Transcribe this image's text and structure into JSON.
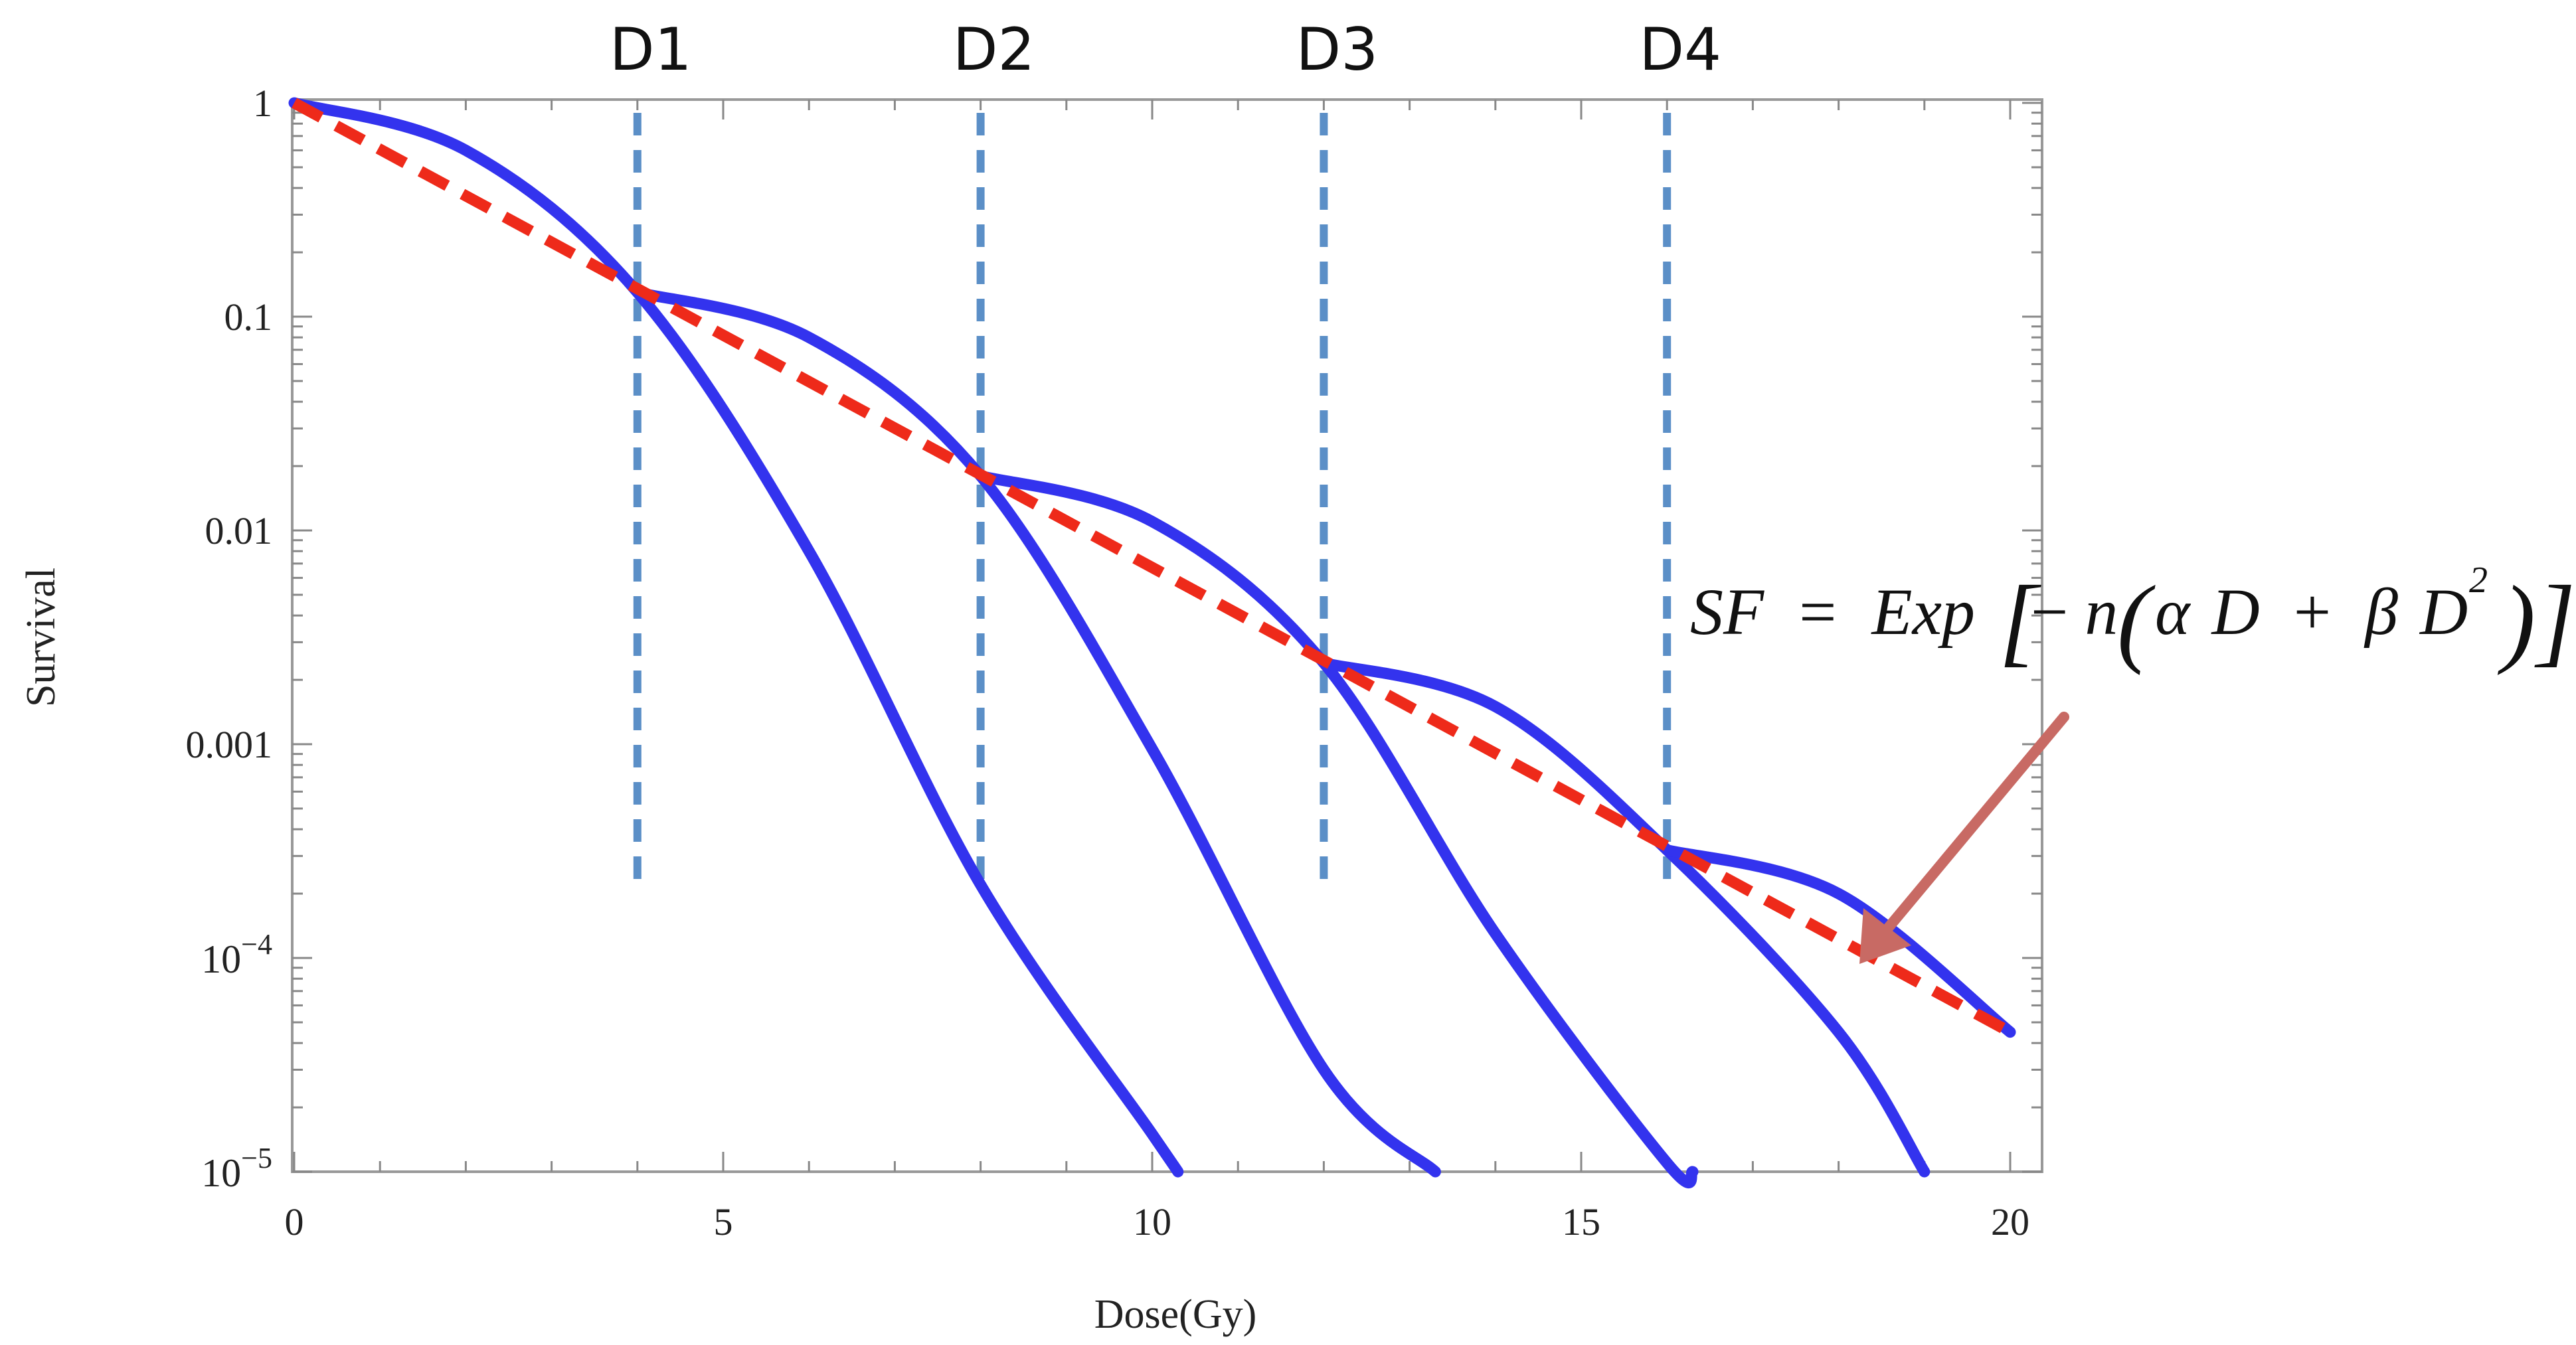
{
  "chart_data": {
    "type": "line",
    "xlabel": "Dose(Gy)",
    "ylabel": "Survival",
    "xlim": [
      0,
      20
    ],
    "ylim": [
      1e-05,
      1
    ],
    "y_scale": "log",
    "grid": false,
    "x_ticks": [
      {
        "value": 0,
        "label": "0"
      },
      {
        "value": 5,
        "label": "5"
      },
      {
        "value": 10,
        "label": "10"
      },
      {
        "value": 15,
        "label": "15"
      },
      {
        "value": 20,
        "label": "20"
      }
    ],
    "y_ticks": [
      {
        "value": 1,
        "label": "1"
      },
      {
        "value": 0.1,
        "label": "0.1"
      },
      {
        "value": 0.01,
        "label": "0.01"
      },
      {
        "value": 0.001,
        "label": "0.001"
      },
      {
        "value": 0.0001,
        "base": "10",
        "exp": "−4"
      },
      {
        "value": 1e-05,
        "base": "10",
        "exp": "−5"
      }
    ],
    "dose_markers": [
      {
        "label": "D1",
        "x": 4
      },
      {
        "label": "D2",
        "x": 8
      },
      {
        "label": "D3",
        "x": 12
      },
      {
        "label": "D4",
        "x": 16
      }
    ],
    "series": [
      {
        "start": 0,
        "end": 10.3,
        "values": [
          [
            0,
            1
          ],
          [
            2,
            0.6
          ],
          [
            4,
            0.13
          ],
          [
            6,
            0.008
          ],
          [
            8,
            0.00022
          ],
          [
            10,
            1.5e-05
          ],
          [
            10.3,
            1e-05
          ]
        ]
      },
      {
        "start": 4,
        "end": 13.3,
        "values": [
          [
            4,
            0.13
          ],
          [
            6,
            0.08
          ],
          [
            8,
            0.018
          ],
          [
            10,
            0.00095
          ],
          [
            12,
            3e-05
          ],
          [
            13.3,
            1e-05
          ]
        ]
      },
      {
        "start": 8,
        "end": 16.3,
        "values": [
          [
            8,
            0.018
          ],
          [
            10,
            0.011
          ],
          [
            12,
            0.0024
          ],
          [
            14,
            0.00013
          ],
          [
            16,
            1.1e-05
          ],
          [
            16.3,
            1e-05
          ]
        ]
      },
      {
        "start": 12,
        "end": 19.0,
        "values": [
          [
            12,
            0.0024
          ],
          [
            14,
            0.0015
          ],
          [
            16,
            0.00032
          ],
          [
            18,
            4.5e-05
          ],
          [
            19,
            1e-05
          ]
        ]
      },
      {
        "start": 16,
        "end": 20,
        "values": [
          [
            16,
            0.00032
          ],
          [
            18,
            0.0002
          ],
          [
            20,
            4.5e-05
          ]
        ]
      }
    ],
    "fit_line": {
      "from": [
        0,
        1
      ],
      "to": [
        20,
        4.5e-05
      ],
      "style": "dashed"
    },
    "colors": {
      "curves": "#3333ee",
      "fit_line": "#ee2a1a",
      "markers": "#5b8fc7",
      "arrow": "#c86a64",
      "frame": "#999999"
    },
    "formula": {
      "lhs": "SF",
      "eq": "=",
      "func": "Exp",
      "minus": "−",
      "n": "n",
      "alpha": "α",
      "D": "D",
      "plus": "+",
      "beta": "β",
      "exp2": "2"
    }
  }
}
